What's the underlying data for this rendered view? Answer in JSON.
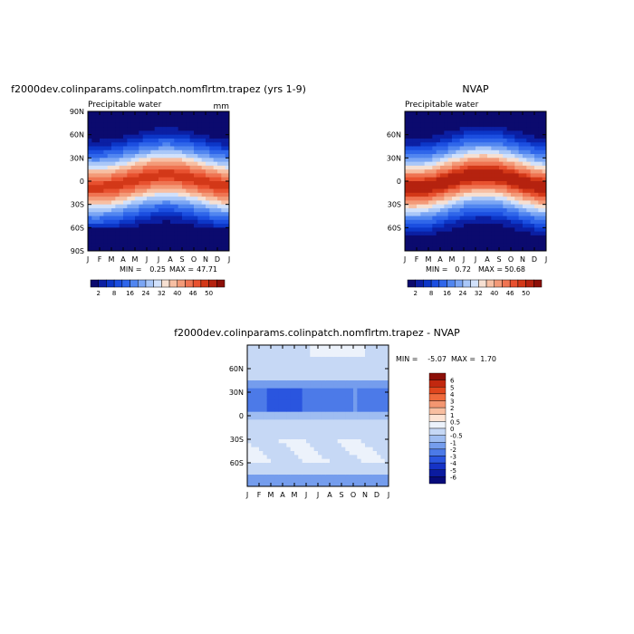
{
  "chart_data": [
    {
      "type": "heatmap",
      "title": "f2000dev.colinparams.colinpatch.nomflrtm.trapez (yrs 1-9)",
      "subtitle": "Precipitable water",
      "units": "mm",
      "x_ticks": [
        "J",
        "F",
        "M",
        "A",
        "M",
        "J",
        "J",
        "A",
        "S",
        "O",
        "N",
        "D",
        "J"
      ],
      "y_ticks": [
        "90N",
        "60N",
        "30N",
        "0",
        "30S",
        "60S",
        "90S"
      ],
      "ylim": [
        -90,
        90
      ],
      "min_label": "MIN =",
      "min_value": "0.25",
      "max_label": "MAX =",
      "max_value": "47.71",
      "legend_levels": [
        2,
        4,
        6,
        8,
        12,
        16,
        20,
        24,
        28,
        32,
        36,
        40,
        44,
        46,
        48,
        50
      ],
      "colorbar_labels": [
        "2",
        "8",
        "16",
        "24",
        "32",
        "40",
        "46",
        "50"
      ]
    },
    {
      "type": "heatmap",
      "title": "NVAP",
      "subtitle": "Precipitable water",
      "units": "",
      "x_ticks": [
        "J",
        "F",
        "M",
        "A",
        "M",
        "J",
        "J",
        "A",
        "S",
        "O",
        "N",
        "D",
        "J"
      ],
      "y_ticks": [
        "60N",
        "30N",
        "0",
        "30S",
        "60S"
      ],
      "ylim": [
        -90,
        90
      ],
      "min_label": "MIN =",
      "min_value": "0.72",
      "max_label": "MAX =",
      "max_value": "50.68",
      "legend_levels": [
        2,
        4,
        6,
        8,
        12,
        16,
        20,
        24,
        28,
        32,
        36,
        40,
        44,
        46,
        48,
        50
      ],
      "colorbar_labels": [
        "2",
        "8",
        "16",
        "24",
        "32",
        "40",
        "46",
        "50"
      ]
    },
    {
      "type": "heatmap",
      "title": "f2000dev.colinparams.colinpatch.nomflrtm.trapez - NVAP",
      "x_ticks": [
        "J",
        "F",
        "M",
        "A",
        "M",
        "J",
        "J",
        "A",
        "S",
        "O",
        "N",
        "D",
        "J"
      ],
      "y_ticks": [
        "60N",
        "30N",
        "0",
        "30S",
        "60S"
      ],
      "ylim": [
        -90,
        90
      ],
      "min_label": "MIN =",
      "min_value": "-5.07",
      "max_label": "MAX =",
      "max_value": "1.70",
      "legend_levels": [
        6,
        5,
        4,
        3,
        2,
        1,
        0.5,
        0,
        -0.5,
        -1,
        -2,
        -3,
        -4,
        -5,
        -6
      ],
      "colorbar_labels": [
        "6",
        "5",
        "4",
        "3",
        "2",
        "1",
        "0.5",
        "0",
        "-0.5",
        "-1",
        "-2",
        "-3",
        "-4",
        "-5",
        "-6"
      ]
    }
  ],
  "colors": {
    "full_palette": [
      "#0b0a6e",
      "#0b1fa3",
      "#0c36c7",
      "#1b4ee0",
      "#2f66ea",
      "#5186f0",
      "#7ba6f4",
      "#a9c7f8",
      "#d1e1fb",
      "#f6e0d2",
      "#f7bfa3",
      "#f39a78",
      "#ef7452",
      "#e8512f",
      "#d33818",
      "#b5220f",
      "#8c0f08"
    ],
    "diff_palette": [
      "#8c0f08",
      "#c2280f",
      "#e0461d",
      "#ef6a3c",
      "#f39670",
      "#f8bea0",
      "#fde3d3",
      "#ecf2fb",
      "#c6d8f5",
      "#9fbdf1",
      "#759ded",
      "#4c7ae8",
      "#2a55df",
      "#1633c6",
      "#0b1ba0",
      "#070b7a"
    ]
  }
}
